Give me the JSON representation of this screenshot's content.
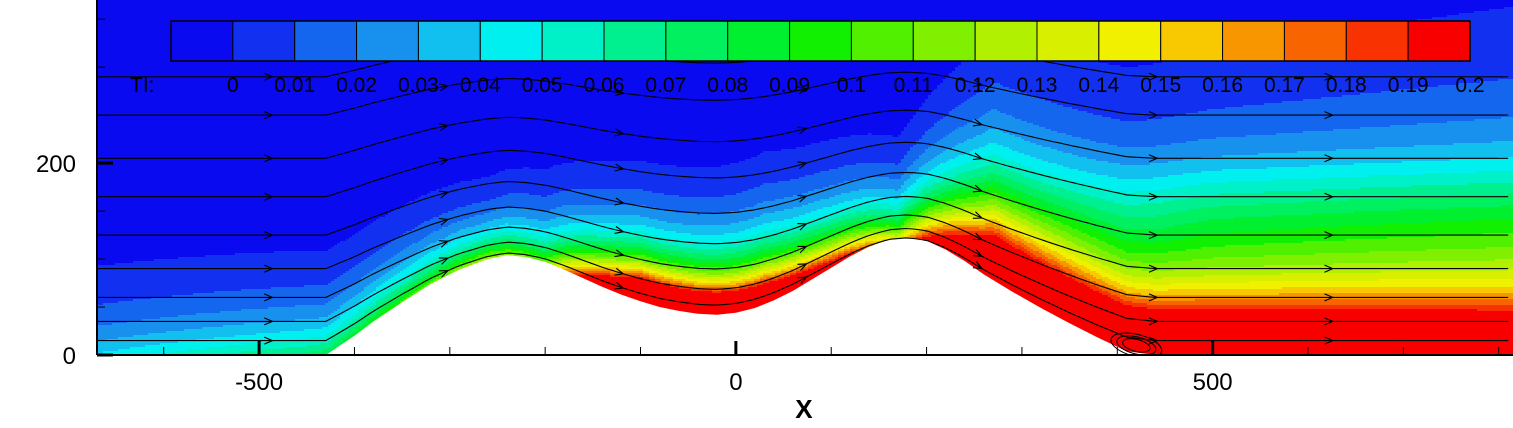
{
  "chart_data": {
    "type": "heatmap",
    "title": "",
    "xlabel": "X",
    "ylabel": "",
    "xlim": [
      -670,
      815
    ],
    "ylim": [
      0,
      370
    ],
    "x_ticks": [
      {
        "value": -500,
        "label": "-500"
      },
      {
        "value": 0,
        "label": "0"
      },
      {
        "value": 500,
        "label": "500"
      }
    ],
    "y_ticks": [
      {
        "value": 0,
        "label": "0"
      },
      {
        "value": 200,
        "label": "200"
      }
    ],
    "colorbar": {
      "variable_label": "TI:",
      "placement": "top",
      "levels": [
        0,
        0.01,
        0.02,
        0.03,
        0.04,
        0.05,
        0.06,
        0.07,
        0.08,
        0.09,
        0.1,
        0.11,
        0.12,
        0.13,
        0.14,
        0.15,
        0.16,
        0.17,
        0.18,
        0.19,
        0.2
      ],
      "level_labels": [
        "0",
        "0.01",
        "0.02",
        "0.03",
        "0.04",
        "0.05",
        "0.06",
        "0.07",
        "0.08",
        "0.09",
        "0.1",
        "0.11",
        "0.12",
        "0.13",
        "0.14",
        "0.15",
        "0.16",
        "0.17",
        "0.18",
        "0.19",
        "0.2"
      ],
      "colors": [
        "#0a0af0",
        "#1230f0",
        "#1466ee",
        "#1890ee",
        "#12c0f0",
        "#00f0f0",
        "#00f0c8",
        "#00f090",
        "#00f060",
        "#00f030",
        "#10f000",
        "#50f000",
        "#80f000",
        "#b0f000",
        "#d8f000",
        "#f0f000",
        "#f8c800",
        "#f89600",
        "#f86400",
        "#f83200",
        "#f80000"
      ]
    },
    "terrain": {
      "x": [
        -670,
        -430,
        -400,
        -380,
        -350,
        -320,
        -290,
        -260,
        -240,
        -220,
        -200,
        -180,
        -160,
        -140,
        -120,
        -100,
        -80,
        -60,
        -40,
        -20,
        0,
        20,
        40,
        60,
        80,
        100,
        120,
        140,
        160,
        180,
        200,
        220,
        240,
        260,
        290,
        320,
        350,
        380,
        410,
        440,
        815
      ],
      "y": [
        0,
        0,
        20,
        35,
        55,
        74,
        89,
        100,
        104,
        102,
        97,
        89,
        80,
        71,
        63,
        56,
        50,
        46,
        43,
        42,
        44,
        49,
        57,
        67,
        79,
        91,
        103,
        113,
        120,
        122,
        119,
        110,
        98,
        84,
        66,
        49,
        33,
        18,
        4,
        0,
        0
      ]
    },
    "background_ti": 0.005,
    "streamline_starts_y": [
      15,
      35,
      60,
      90,
      125,
      165,
      205,
      250,
      290
    ],
    "recirculation": {
      "x": 420,
      "y": 10
    }
  }
}
